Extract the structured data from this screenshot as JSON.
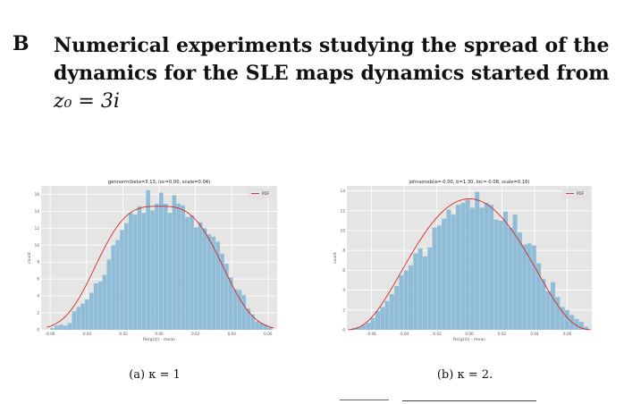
{
  "section": {
    "number": "B",
    "title": "Numerical experiments studying the spread of the dynamics for the SLE maps dynamics started from",
    "math": "z₀ = 3i"
  },
  "colors": {
    "bar": "#8fbcd6",
    "line": "#d62728",
    "panel": "#e5e5e5",
    "grid": "#ffffff"
  },
  "figures": [
    {
      "caption": "(a) κ = 1",
      "chart_data": {
        "type": "bar",
        "title": "gennorm(beta=3.13, loc=0.00, scale=0.04)",
        "xlabel": "Re(g(z)) - mean",
        "ylabel": "count",
        "legend": "PDF",
        "legend_position": "top-right",
        "grid": true,
        "xlim": [
          -0.065,
          0.065
        ],
        "ylim": [
          0,
          17
        ],
        "xticks": [
          "-0.06",
          "-0.04",
          "-0.02",
          "0.00",
          "0.02",
          "0.04",
          "0.06"
        ],
        "yticks": [
          "0",
          "2",
          "4",
          "6",
          "8",
          "10",
          "12",
          "14",
          "16"
        ],
        "bins": {
          "start": -0.06,
          "width": 0.0024,
          "counts": [
            0.2,
            0.5,
            0.6,
            0.5,
            0.8,
            2.2,
            2.7,
            3.1,
            3.6,
            4.4,
            5.5,
            5.7,
            6.5,
            8.3,
            10.0,
            10.6,
            11.8,
            12.6,
            13.8,
            13.6,
            14.6,
            13.8,
            16.5,
            14.1,
            14.9,
            16.2,
            14.9,
            13.8,
            15.9,
            14.9,
            14.7,
            13.3,
            13.5,
            12.1,
            12.7,
            12.0,
            11.3,
            11.0,
            10.4,
            9.0,
            7.8,
            6.2,
            4.8,
            4.7,
            4.1,
            2.5,
            1.8,
            1.0,
            0.8,
            0.6,
            0.3
          ]
        },
        "pdf": {
          "beta": 3.13,
          "loc": 0.0,
          "scale": 0.04,
          "peak": 14.6
        }
      }
    },
    {
      "caption": "(b) κ = 2.",
      "chart_data": {
        "type": "bar",
        "title": "johnsonsb(a=-0.00, b=1.30, loc=-0.08, scale=0.16)",
        "xlabel": "Re(g(z)) - mean",
        "ylabel": "count",
        "legend": "PDF",
        "legend_position": "top-right",
        "grid": true,
        "xlim": [
          -0.075,
          0.075
        ],
        "ylim": [
          0,
          14.5
        ],
        "xticks": [
          "-0.06",
          "-0.04",
          "-0.02",
          "0.00",
          "0.02",
          "0.04",
          "0.06"
        ],
        "yticks": [
          "0",
          "2",
          "4",
          "6",
          "8",
          "10",
          "12",
          "14"
        ],
        "bins": {
          "start": -0.072,
          "width": 0.0029,
          "counts": [
            0.2,
            0.3,
            0.5,
            0.7,
            1.2,
            1.9,
            2.3,
            2.9,
            3.6,
            4.4,
            5.5,
            6.0,
            6.5,
            7.7,
            8.2,
            7.4,
            8.3,
            10.3,
            10.5,
            11.2,
            12.1,
            11.6,
            12.6,
            12.8,
            13.1,
            12.3,
            13.9,
            12.3,
            12.8,
            12.6,
            11.1,
            11.0,
            11.9,
            10.3,
            11.6,
            9.8,
            8.6,
            8.7,
            8.5,
            6.7,
            5.1,
            3.9,
            4.8,
            3.3,
            2.3,
            2.0,
            1.5,
            1.1,
            0.8,
            0.3
          ]
        },
        "pdf": {
          "a": -0.0,
          "b": 1.3,
          "loc": -0.08,
          "scale": 0.16,
          "peak": 13.2
        }
      }
    }
  ]
}
